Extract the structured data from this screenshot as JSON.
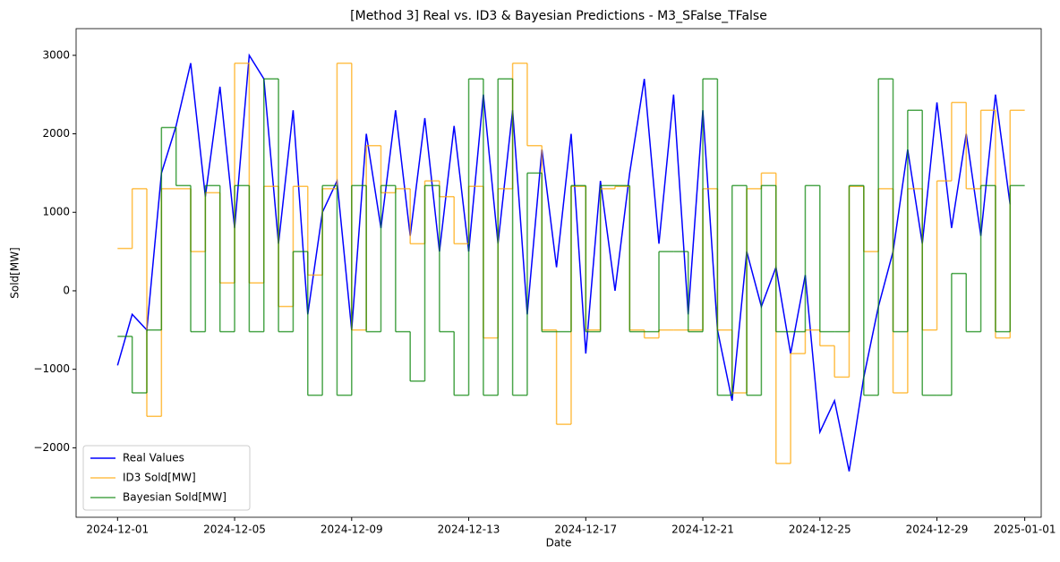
{
  "chart_data": {
    "type": "line",
    "title": "[Method 3] Real vs. ID3 & Bayesian Predictions - M3_SFalse_TFalse",
    "xlabel": "Date",
    "ylabel": "Sold[MW]",
    "x": [
      "2024-12-01T00:00",
      "2024-12-01T12:00",
      "2024-12-02T00:00",
      "2024-12-02T12:00",
      "2024-12-03T00:00",
      "2024-12-03T12:00",
      "2024-12-04T00:00",
      "2024-12-04T12:00",
      "2024-12-05T00:00",
      "2024-12-05T12:00",
      "2024-12-06T00:00",
      "2024-12-06T12:00",
      "2024-12-07T00:00",
      "2024-12-07T12:00",
      "2024-12-08T00:00",
      "2024-12-08T12:00",
      "2024-12-09T00:00",
      "2024-12-09T12:00",
      "2024-12-10T00:00",
      "2024-12-10T12:00",
      "2024-12-11T00:00",
      "2024-12-11T12:00",
      "2024-12-12T00:00",
      "2024-12-12T12:00",
      "2024-12-13T00:00",
      "2024-12-13T12:00",
      "2024-12-14T00:00",
      "2024-12-14T12:00",
      "2024-12-15T00:00",
      "2024-12-15T12:00",
      "2024-12-16T00:00",
      "2024-12-16T12:00",
      "2024-12-17T00:00",
      "2024-12-17T12:00",
      "2024-12-18T00:00",
      "2024-12-18T12:00",
      "2024-12-19T00:00",
      "2024-12-19T12:00",
      "2024-12-20T00:00",
      "2024-12-20T12:00",
      "2024-12-21T00:00",
      "2024-12-21T12:00",
      "2024-12-22T00:00",
      "2024-12-22T12:00",
      "2024-12-23T00:00",
      "2024-12-23T12:00",
      "2024-12-24T00:00",
      "2024-12-24T12:00",
      "2024-12-25T00:00",
      "2024-12-25T12:00",
      "2024-12-26T00:00",
      "2024-12-26T12:00",
      "2024-12-27T00:00",
      "2024-12-27T12:00",
      "2024-12-28T00:00",
      "2024-12-28T12:00",
      "2024-12-29T00:00",
      "2024-12-29T12:00",
      "2024-12-30T00:00",
      "2024-12-30T12:00",
      "2024-12-31T00:00",
      "2024-12-31T12:00"
    ],
    "series": [
      {
        "name": "Real Values",
        "color": "#0000ff",
        "opacity": 1,
        "drawstyle": "default",
        "values": [
          -950,
          -300,
          -500,
          1500,
          2100,
          2900,
          1200,
          2600,
          800,
          3000,
          2700,
          600,
          2300,
          -300,
          1000,
          1400,
          -500,
          2000,
          800,
          2300,
          700,
          2200,
          500,
          2100,
          500,
          2500,
          600,
          2300,
          -300,
          1800,
          300,
          2000,
          -800,
          1400,
          0,
          1500,
          2700,
          600,
          2500,
          -300,
          2300,
          -500,
          -1400,
          500,
          -200,
          300,
          -800,
          200,
          -1800,
          -1400,
          -2300,
          -1100,
          -200,
          500,
          1800,
          600,
          2400,
          800,
          2000,
          700,
          2500,
          1100
        ]
      },
      {
        "name": "ID3 Sold[MW]",
        "color": "#ffa500",
        "opacity": 0.7,
        "drawstyle": "steps-post",
        "values": [
          540,
          1300,
          -1600,
          1300,
          1300,
          500,
          1250,
          100,
          2900,
          100,
          1330,
          -200,
          1330,
          200,
          1300,
          2900,
          -500,
          1850,
          1250,
          1300,
          600,
          1400,
          1200,
          600,
          1330,
          -600,
          1300,
          2900,
          1850,
          -500,
          -1700,
          1330,
          -500,
          1300,
          1330,
          -500,
          -600,
          -500,
          -500,
          -500,
          1300,
          -500,
          -1300,
          1300,
          1500,
          -2200,
          -800,
          -500,
          -700,
          -1100,
          1330,
          500,
          1300,
          -1300,
          1300,
          -500,
          1400,
          2400,
          1300,
          2300,
          -600,
          2300
        ]
      },
      {
        "name": "Bayesian Sold[MW]",
        "color": "#008000",
        "opacity": 0.7,
        "drawstyle": "steps-post",
        "values": [
          -580,
          -1300,
          -500,
          2080,
          1340,
          -520,
          1340,
          -520,
          1340,
          -520,
          2700,
          -520,
          500,
          -1330,
          1340,
          -1330,
          1340,
          -520,
          1340,
          -520,
          -1150,
          1340,
          -520,
          -1330,
          2700,
          -1330,
          2700,
          -1330,
          1500,
          -520,
          -520,
          1340,
          -520,
          1340,
          1340,
          -520,
          -520,
          500,
          500,
          -520,
          2700,
          -1330,
          1340,
          -1330,
          1340,
          -520,
          -520,
          1340,
          -520,
          -520,
          1340,
          -1330,
          2700,
          -520,
          2300,
          -1330,
          -1330,
          220,
          -520,
          1340,
          -520,
          1340
        ]
      }
    ],
    "xlim": [
      "2024-11-29T14:00",
      "2025-01-01T13:30"
    ],
    "xticks": [
      "2024-12-01",
      "2024-12-05",
      "2024-12-09",
      "2024-12-13",
      "2024-12-17",
      "2024-12-21",
      "2024-12-25",
      "2024-12-29",
      "2025-01-01"
    ],
    "ylim": [
      -2885,
      3340
    ],
    "yticks": [
      {
        "value": -2000,
        "label": "−2000"
      },
      {
        "value": -1000,
        "label": "−1000"
      },
      0,
      1000,
      2000,
      3000
    ],
    "legend": "lower left"
  }
}
